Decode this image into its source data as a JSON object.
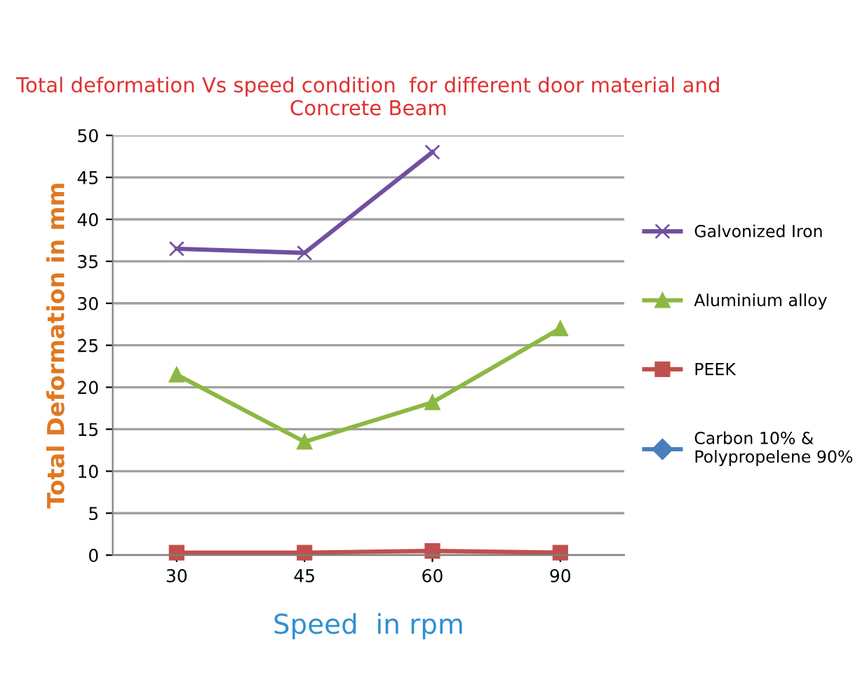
{
  "chart_data": {
    "type": "line",
    "title": "Total deformation Vs speed condition  for different door material and Concrete Beam",
    "xlabel": "Speed  in rpm",
    "ylabel": "Total Deformation in mm",
    "categories": [
      "30",
      "45",
      "60",
      "90"
    ],
    "series": [
      {
        "name": "Galvonized Iron",
        "color": "#7050a0",
        "marker": "cross",
        "values": [
          36.5,
          36,
          48,
          null
        ]
      },
      {
        "name": "Aluminium alloy",
        "color": "#8db843",
        "marker": "triangle",
        "values": [
          21.5,
          13.5,
          18.2,
          27
        ]
      },
      {
        "name": "PEEK",
        "color": "#c0504d",
        "marker": "square",
        "values": [
          0.3,
          0.3,
          0.5,
          0.3
        ]
      },
      {
        "name": "Carbon 10% &\nPolypropelene 90%",
        "color": "#4a7ebb",
        "marker": "diamond",
        "values": [
          null,
          null,
          null,
          null
        ]
      }
    ],
    "ylim": [
      0,
      50
    ],
    "yticks": [
      0,
      5,
      10,
      15,
      20,
      25,
      30,
      35,
      40,
      45,
      50
    ],
    "grid": "y",
    "legend": "right",
    "line_style": "solid"
  }
}
